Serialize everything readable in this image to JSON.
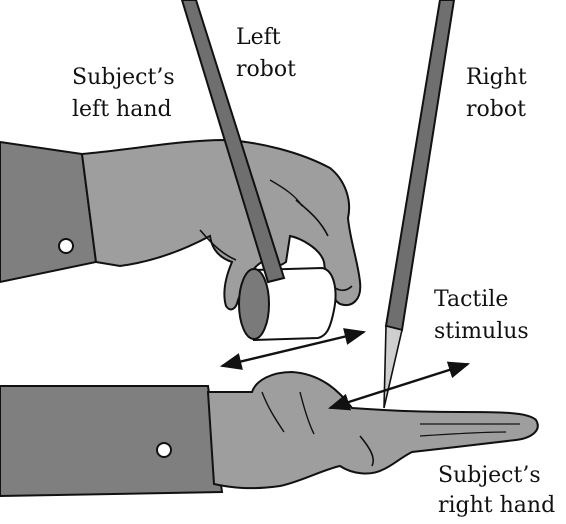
{
  "labels": {
    "left_robot": [
      "Left",
      "robot"
    ],
    "subject_left_hand": [
      "Subject’s",
      "left hand"
    ],
    "right_robot": [
      "Right",
      "robot"
    ],
    "tactile_stimulus": [
      "Tactile",
      "stimulus"
    ],
    "subject_right_hand": [
      "Subject’s",
      "right hand"
    ]
  },
  "colors": {
    "sleeve": "#7f7f7f",
    "skin": "#9e9e9e",
    "robot_arm": "#6f6f6f",
    "outline": "#111111",
    "background": "#ffffff"
  }
}
